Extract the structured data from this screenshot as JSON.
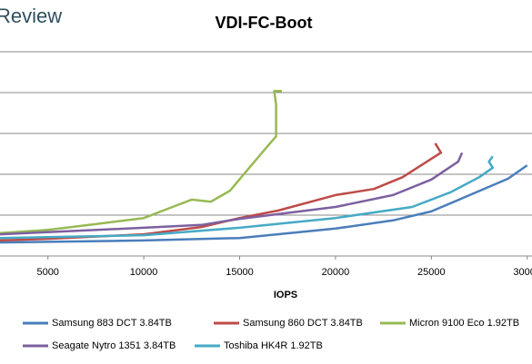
{
  "brand": "Review",
  "chart_data": {
    "type": "line",
    "title": "VDI-FC-Boot",
    "x_label": "IOPS",
    "xlim": [
      2500,
      30250
    ],
    "xticks": [
      5000,
      10000,
      15000,
      20000,
      25000,
      30000
    ],
    "ylim": [
      0,
      6
    ],
    "ygrid": [
      1,
      2,
      3,
      4,
      5
    ],
    "grid": true,
    "series": [
      {
        "name": "Samsung 883 DCT 3.84TB",
        "color": "#4a7ebb",
        "x": [
          2500,
          10000,
          15000,
          20000,
          23000,
          25000,
          27000,
          29000,
          30000
        ],
        "values": [
          0.33,
          0.38,
          0.44,
          0.67,
          0.87,
          1.09,
          1.49,
          1.89,
          2.22
        ]
      },
      {
        "name": "Samsung 860 DCT 3.84TB",
        "color": "#be4b48",
        "x": [
          2500,
          5000,
          10000,
          13000,
          15000,
          17000,
          20000,
          22000,
          23500,
          25000,
          25500,
          25200
        ],
        "values": [
          0.38,
          0.42,
          0.53,
          0.71,
          0.93,
          1.11,
          1.49,
          1.64,
          1.93,
          2.38,
          2.53,
          2.76
        ]
      },
      {
        "name": "Micron 9100 Eco 1.92TB",
        "color": "#98b954",
        "x": [
          2500,
          5000,
          7500,
          10000,
          11500,
          12500,
          13500,
          14500,
          15500,
          16500,
          16900,
          16900,
          16800,
          17200
        ],
        "values": [
          0.56,
          0.64,
          0.78,
          0.93,
          1.2,
          1.38,
          1.33,
          1.6,
          2.16,
          2.71,
          2.93,
          3.71,
          4.04,
          4.04
        ]
      },
      {
        "name": "Seagate Nytro 1351 3.84TB",
        "color": "#7d60a0",
        "x": [
          2500,
          10000,
          13000,
          15000,
          20000,
          23000,
          25000,
          26400,
          26600
        ],
        "values": [
          0.53,
          0.69,
          0.76,
          0.91,
          1.2,
          1.49,
          1.87,
          2.31,
          2.53
        ]
      },
      {
        "name": "Toshiba HK4R 1.92TB",
        "color": "#46aac5",
        "x": [
          2500,
          10000,
          15000,
          20000,
          24000,
          26000,
          27500,
          28200,
          28000,
          28200
        ],
        "values": [
          0.44,
          0.51,
          0.69,
          0.93,
          1.2,
          1.56,
          1.93,
          2.16,
          2.31,
          2.44
        ]
      }
    ]
  }
}
